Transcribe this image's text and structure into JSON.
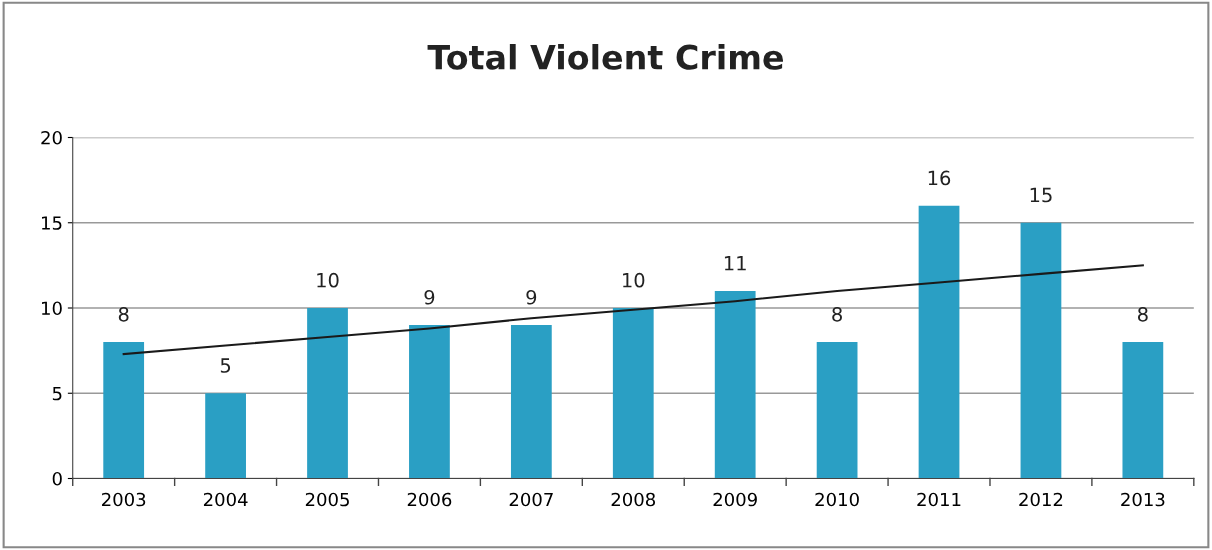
{
  "chart_data": {
    "type": "bar",
    "title": "Total Violent Crime",
    "categories": [
      "2003",
      "2004",
      "2005",
      "2006",
      "2007",
      "2008",
      "2009",
      "2010",
      "2011",
      "2012",
      "2013"
    ],
    "series": [
      {
        "color": "#2a9fc4",
        "values": [
          8,
          5,
          10,
          9,
          9,
          10,
          11,
          8,
          16,
          15,
          8
        ],
        "value_labels": [
          "8",
          "5",
          "10",
          "9",
          "9",
          "10",
          "11",
          "8",
          "16",
          "15",
          "8"
        ]
      },
      {
        "type": "line",
        "color": "#1a1a1a",
        "values": [
          7.3,
          7.8,
          8.3,
          8.8,
          9.4,
          9.9,
          10.4,
          11.0,
          11.5,
          12.0,
          12.5
        ]
      }
    ],
    "ylim": [
      0,
      20
    ],
    "yticks": [
      0,
      5,
      10,
      15,
      20
    ],
    "grid": "y"
  }
}
